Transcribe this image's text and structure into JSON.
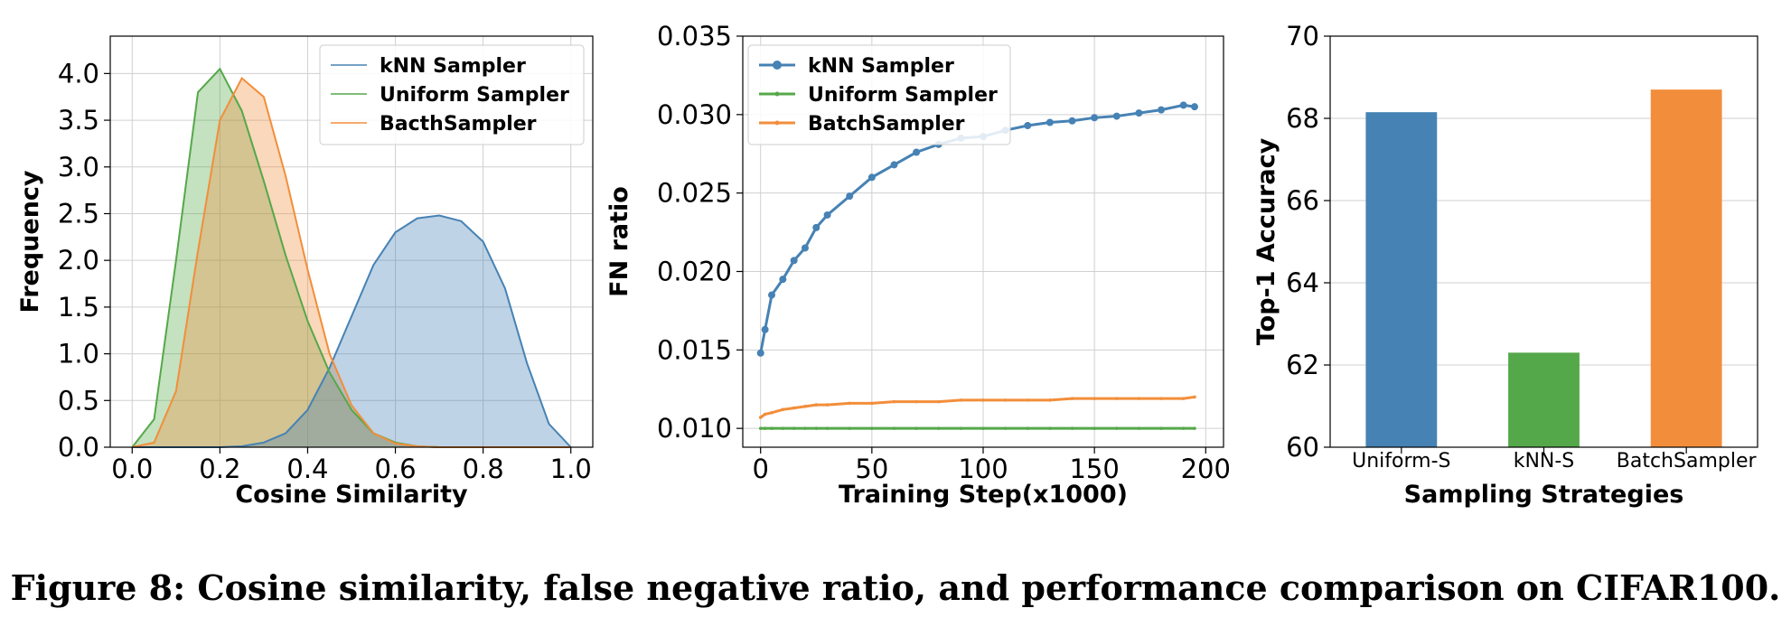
{
  "caption": "Figure 8: Cosine similarity, false negative ratio, and performance comparison on CIFAR100.",
  "colors": {
    "blue": "#4682b4",
    "green": "#55a84a",
    "orange": "#f28e3b"
  },
  "chart_data": [
    {
      "type": "area",
      "title": "",
      "xlabel": "Cosine Similarity",
      "ylabel": "Frequency",
      "xlim": [
        -0.05,
        1.05
      ],
      "ylim": [
        0.0,
        4.4
      ],
      "xticks": [
        "0.0",
        "0.2",
        "0.4",
        "0.6",
        "0.8",
        "1.0"
      ],
      "yticks": [
        "0.0",
        "0.5",
        "1.0",
        "1.5",
        "2.0",
        "2.5",
        "3.0",
        "3.5",
        "4.0"
      ],
      "grid": true,
      "legend": "top-right",
      "x": [
        0.0,
        0.05,
        0.1,
        0.15,
        0.2,
        0.25,
        0.3,
        0.35,
        0.4,
        0.45,
        0.5,
        0.55,
        0.6,
        0.65,
        0.7,
        0.75,
        0.8,
        0.85,
        0.9,
        0.95,
        1.0
      ],
      "series": [
        {
          "name": "kNN Sampler",
          "color": "#4682b4",
          "values": [
            0.0,
            0.0,
            0.0,
            0.0,
            0.0,
            0.01,
            0.05,
            0.15,
            0.4,
            0.85,
            1.4,
            1.95,
            2.3,
            2.45,
            2.48,
            2.42,
            2.2,
            1.7,
            0.9,
            0.25,
            0.0
          ]
        },
        {
          "name": "Uniform Sampler",
          "color": "#55a84a",
          "values": [
            0.0,
            0.3,
            2.0,
            3.8,
            4.05,
            3.6,
            2.85,
            2.05,
            1.35,
            0.8,
            0.4,
            0.15,
            0.05,
            0.01,
            0.0,
            0.0,
            0.0,
            0.0,
            0.0,
            0.0,
            0.0
          ]
        },
        {
          "name": "BacthSampler",
          "color": "#f28e3b",
          "values": [
            0.0,
            0.05,
            0.6,
            2.1,
            3.5,
            3.95,
            3.75,
            2.9,
            1.9,
            1.0,
            0.45,
            0.15,
            0.04,
            0.01,
            0.0,
            0.0,
            0.0,
            0.0,
            0.0,
            0.0,
            0.0
          ]
        }
      ]
    },
    {
      "type": "line",
      "title": "",
      "xlabel": "Training Step(x1000)",
      "ylabel": "FN ratio",
      "xlim": [
        -8,
        208
      ],
      "ylim": [
        0.0088,
        0.035
      ],
      "xticks": [
        "0",
        "50",
        "100",
        "150",
        "200"
      ],
      "yticks": [
        "0.010",
        "0.015",
        "0.020",
        "0.025",
        "0.030",
        "0.035"
      ],
      "grid": true,
      "legend": "top-left",
      "x": [
        0,
        2,
        5,
        10,
        15,
        20,
        25,
        30,
        40,
        50,
        60,
        70,
        80,
        90,
        100,
        110,
        120,
        130,
        140,
        150,
        160,
        170,
        180,
        190,
        195
      ],
      "series": [
        {
          "name": "kNN Sampler",
          "color": "#4682b4",
          "marker": "circle",
          "values": [
            0.0148,
            0.0163,
            0.0185,
            0.0195,
            0.0207,
            0.0215,
            0.0228,
            0.0236,
            0.0248,
            0.026,
            0.0268,
            0.0276,
            0.0281,
            0.0285,
            0.0286,
            0.029,
            0.0293,
            0.0295,
            0.0296,
            0.0298,
            0.0299,
            0.0301,
            0.0303,
            0.0306,
            0.0305
          ]
        },
        {
          "name": "Uniform Sampler",
          "color": "#55a84a",
          "marker": "small",
          "values": [
            0.01,
            0.01,
            0.01,
            0.01,
            0.01,
            0.01,
            0.01,
            0.01,
            0.01,
            0.01,
            0.01,
            0.01,
            0.01,
            0.01,
            0.01,
            0.01,
            0.01,
            0.01,
            0.01,
            0.01,
            0.01,
            0.01,
            0.01,
            0.01,
            0.01
          ]
        },
        {
          "name": "BatchSampler",
          "color": "#f28e3b",
          "marker": "small",
          "values": [
            0.0107,
            0.0109,
            0.011,
            0.0112,
            0.0113,
            0.0114,
            0.0115,
            0.0115,
            0.0116,
            0.0116,
            0.0117,
            0.0117,
            0.0117,
            0.0118,
            0.0118,
            0.0118,
            0.0118,
            0.0118,
            0.0119,
            0.0119,
            0.0119,
            0.0119,
            0.0119,
            0.0119,
            0.012
          ]
        }
      ]
    },
    {
      "type": "bar",
      "title": "",
      "xlabel": "Sampling Strategies",
      "ylabel": "Top-1 Accuracy",
      "ylim": [
        60,
        70
      ],
      "yticks": [
        "60",
        "62",
        "64",
        "66",
        "68",
        "70"
      ],
      "grid": true,
      "categories": [
        "Uniform-S",
        "kNN-S",
        "BatchSampler"
      ],
      "values": [
        68.15,
        62.3,
        68.7
      ],
      "bar_colors": [
        "#4682b4",
        "#55a84a",
        "#f28e3b"
      ]
    }
  ]
}
